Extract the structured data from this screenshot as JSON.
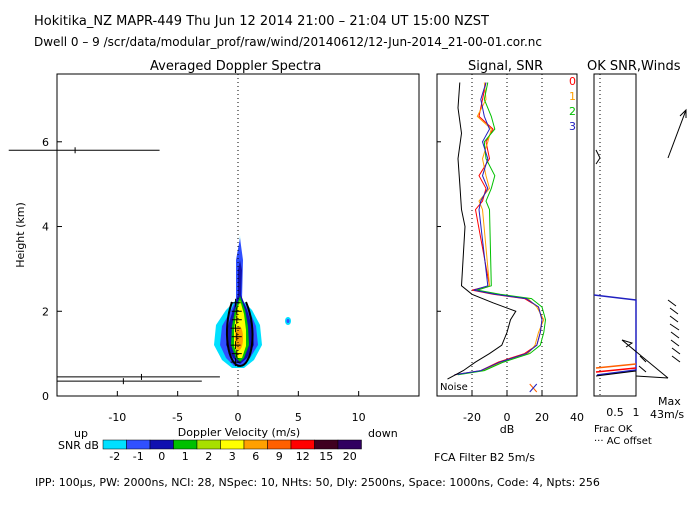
{
  "header": {
    "line1": "Hokitika_NZ   MAPR-449   Thu Jun 12 2014 21:00 – 21:04 UT 15:00 NZST",
    "line2": "Dwell   0 –   9    /scr/data/modular_prof/raw/wind/20140612/12-Jun-2014_21-00-01.cor.nc"
  },
  "footer": {
    "params": "IPP: 100μs,   PW: 2000ns,   NCI:   28,   NSpec: 10,  NHts: 50,   Dly: 2500ns,   Space: 1000ns,   Code: 4,   Npts: 256",
    "filter": "FCA Filter B2   5m/s"
  },
  "colors": {
    "snr_scale": [
      "#00e0ff",
      "#3050ff",
      "#1010b0",
      "#00c000",
      "#a8e000",
      "#ffff00",
      "#ffa000",
      "#ff6000",
      "#ff0000",
      "#400020",
      "#300060"
    ],
    "series": [
      "#ff0000",
      "#ffa000",
      "#00c000",
      "#2020c0"
    ]
  },
  "chart_data": [
    {
      "type": "heatmap",
      "title": "Averaged Doppler Spectra",
      "xlabel": "Doppler Velocity (m/s)",
      "ylabel": "Height (km)",
      "xlim": [
        -15,
        15
      ],
      "ylim": [
        0,
        7.6
      ],
      "xticks": [
        -10,
        -5,
        0,
        5,
        10
      ],
      "yticks": [
        0,
        2,
        4,
        6
      ],
      "left_note": "up",
      "right_note": "down",
      "colorbar_label": "SNR dB",
      "colorbar_ticks": [
        "-2",
        "-1",
        "0",
        "1",
        "2",
        "3",
        "6",
        "9",
        "12",
        "15",
        "20"
      ],
      "mean_velocity_profile": [
        {
          "h": 0.8,
          "v": -0.2
        },
        {
          "h": 1.0,
          "v": -0.1
        },
        {
          "h": 1.2,
          "v": -0.2
        },
        {
          "h": 1.4,
          "v": -0.1
        },
        {
          "h": 1.6,
          "v": -0.2
        },
        {
          "h": 1.8,
          "v": -0.1
        },
        {
          "h": 2.0,
          "v": -0.1
        },
        {
          "h": 2.2,
          "v": -0.2
        }
      ],
      "spread_marks": [
        {
          "h": 5.8,
          "v": -13.5,
          "from": -19,
          "to": -6.5
        },
        {
          "h": 0.45,
          "v": -8,
          "from": -15,
          "to": -1.5
        },
        {
          "h": 0.35,
          "v": -9.5,
          "from": -15,
          "to": -3
        }
      ]
    },
    {
      "type": "line",
      "title": "Signal, SNR",
      "xlabel": "dB",
      "xlim": [
        -40,
        40
      ],
      "xticks": [
        -20,
        0,
        20,
        40
      ],
      "noise_label": "Noise",
      "series": [
        {
          "name": "0",
          "points": [
            [
              -12,
              7.4
            ],
            [
              -14,
              7.0
            ],
            [
              -16,
              6.6
            ],
            [
              -8,
              6.3
            ],
            [
              -12,
              6.0
            ],
            [
              -10,
              5.6
            ],
            [
              -16,
              5.2
            ],
            [
              -12,
              4.9
            ],
            [
              -14,
              4.6
            ],
            [
              -18,
              4.4
            ],
            [
              -10,
              2.6
            ],
            [
              -20,
              2.5
            ],
            [
              -8,
              2.4
            ],
            [
              10,
              2.3
            ],
            [
              18,
              2.1
            ],
            [
              20,
              1.8
            ],
            [
              19,
              1.5
            ],
            [
              17,
              1.2
            ],
            [
              10,
              1.0
            ],
            [
              -5,
              0.8
            ],
            [
              -15,
              0.6
            ],
            [
              -30,
              0.5
            ]
          ]
        },
        {
          "name": "1",
          "points": [
            [
              -13,
              7.4
            ],
            [
              -12,
              7.0
            ],
            [
              -17,
              6.6
            ],
            [
              -9,
              6.3
            ],
            [
              -11,
              6.0
            ],
            [
              -14,
              5.6
            ],
            [
              -12,
              5.2
            ],
            [
              -10,
              4.9
            ],
            [
              -16,
              4.6
            ],
            [
              -14,
              4.4
            ],
            [
              -10,
              2.6
            ],
            [
              -18,
              2.5
            ],
            [
              -6,
              2.4
            ],
            [
              12,
              2.3
            ],
            [
              17,
              2.1
            ],
            [
              21,
              1.8
            ],
            [
              18,
              1.5
            ],
            [
              16,
              1.2
            ],
            [
              12,
              1.0
            ],
            [
              -3,
              0.8
            ],
            [
              -14,
              0.6
            ],
            [
              -29,
              0.5
            ]
          ]
        },
        {
          "name": "2",
          "points": [
            [
              -11,
              7.4
            ],
            [
              -13,
              7.0
            ],
            [
              -9,
              6.6
            ],
            [
              -7,
              6.3
            ],
            [
              -13,
              6.0
            ],
            [
              -12,
              5.6
            ],
            [
              -7,
              5.2
            ],
            [
              -9,
              4.9
            ],
            [
              -12,
              4.6
            ],
            [
              -10,
              4.4
            ],
            [
              -9,
              2.6
            ],
            [
              -17,
              2.5
            ],
            [
              -4,
              2.4
            ],
            [
              14,
              2.3
            ],
            [
              20,
              2.1
            ],
            [
              22,
              1.8
            ],
            [
              21,
              1.5
            ],
            [
              19,
              1.2
            ],
            [
              13,
              1.0
            ],
            [
              -2,
              0.8
            ],
            [
              -13,
              0.6
            ],
            [
              -28,
              0.5
            ]
          ]
        },
        {
          "name": "3",
          "points": [
            [
              -12,
              7.4
            ],
            [
              -15,
              7.0
            ],
            [
              -13,
              6.6
            ],
            [
              -10,
              6.3
            ],
            [
              -14,
              6.0
            ],
            [
              -11,
              5.6
            ],
            [
              -14,
              5.2
            ],
            [
              -11,
              4.9
            ],
            [
              -15,
              4.6
            ],
            [
              -16,
              4.4
            ],
            [
              -11,
              2.6
            ],
            [
              -19,
              2.5
            ],
            [
              -7,
              2.4
            ],
            [
              11,
              2.3
            ],
            [
              18,
              2.1
            ],
            [
              20,
              1.8
            ],
            [
              19,
              1.5
            ],
            [
              17,
              1.2
            ],
            [
              11,
              1.0
            ],
            [
              -4,
              0.8
            ],
            [
              -15,
              0.6
            ],
            [
              -30,
              0.5
            ]
          ]
        },
        {
          "name": "noise",
          "points": [
            [
              -27,
              7.4
            ],
            [
              -28,
              6.8
            ],
            [
              -26,
              6.2
            ],
            [
              -28,
              5.6
            ],
            [
              -27,
              5.0
            ],
            [
              -26,
              4.4
            ],
            [
              -24,
              4.0
            ],
            [
              -26,
              2.6
            ],
            [
              -20,
              2.4
            ],
            [
              -8,
              2.2
            ],
            [
              5,
              2.0
            ],
            [
              2,
              1.8
            ],
            [
              0,
              1.5
            ],
            [
              -3,
              1.2
            ],
            [
              -10,
              1.0
            ],
            [
              -18,
              0.8
            ],
            [
              -25,
              0.6
            ],
            [
              -34,
              0.4
            ]
          ]
        }
      ]
    },
    {
      "type": "line",
      "title": "OK SNR,Winds",
      "series_labels": [
        "0",
        "1",
        "2",
        "3"
      ],
      "xticks": [
        "0.5",
        "1"
      ],
      "frac_label": "Frac OK",
      "offset_label": "··· AC offset",
      "max_label": "Max",
      "speed_label": "43m/s"
    }
  ]
}
